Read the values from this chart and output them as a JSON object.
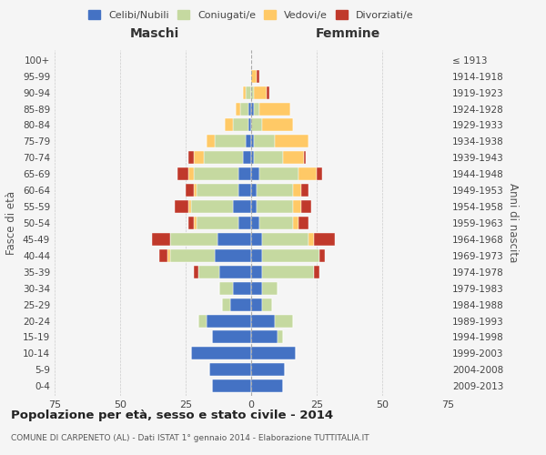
{
  "age_groups": [
    "0-4",
    "5-9",
    "10-14",
    "15-19",
    "20-24",
    "25-29",
    "30-34",
    "35-39",
    "40-44",
    "45-49",
    "50-54",
    "55-59",
    "60-64",
    "65-69",
    "70-74",
    "75-79",
    "80-84",
    "85-89",
    "90-94",
    "95-99",
    "100+"
  ],
  "birth_years": [
    "2009-2013",
    "2004-2008",
    "1999-2003",
    "1994-1998",
    "1989-1993",
    "1984-1988",
    "1979-1983",
    "1974-1978",
    "1969-1973",
    "1964-1968",
    "1959-1963",
    "1954-1958",
    "1949-1953",
    "1944-1948",
    "1939-1943",
    "1934-1938",
    "1929-1933",
    "1924-1928",
    "1919-1923",
    "1914-1918",
    "≤ 1913"
  ],
  "male": {
    "celibi": [
      15,
      16,
      23,
      15,
      17,
      8,
      7,
      12,
      14,
      13,
      5,
      7,
      5,
      5,
      3,
      2,
      1,
      1,
      0,
      0,
      0
    ],
    "coniugati": [
      0,
      0,
      0,
      0,
      3,
      3,
      5,
      8,
      17,
      18,
      16,
      16,
      16,
      17,
      15,
      12,
      6,
      3,
      2,
      0,
      0
    ],
    "vedovi": [
      0,
      0,
      0,
      0,
      0,
      0,
      0,
      0,
      1,
      0,
      1,
      1,
      1,
      2,
      4,
      3,
      3,
      2,
      1,
      0,
      0
    ],
    "divorziati": [
      0,
      0,
      0,
      0,
      0,
      0,
      0,
      2,
      3,
      7,
      2,
      5,
      3,
      4,
      2,
      0,
      0,
      0,
      0,
      0,
      0
    ]
  },
  "female": {
    "nubili": [
      12,
      13,
      17,
      10,
      9,
      4,
      4,
      4,
      4,
      4,
      3,
      2,
      2,
      3,
      1,
      1,
      0,
      1,
      0,
      0,
      0
    ],
    "coniugate": [
      0,
      0,
      0,
      2,
      7,
      4,
      6,
      20,
      22,
      18,
      13,
      14,
      14,
      15,
      11,
      8,
      4,
      2,
      1,
      0,
      0
    ],
    "vedove": [
      0,
      0,
      0,
      0,
      0,
      0,
      0,
      0,
      0,
      2,
      2,
      3,
      3,
      7,
      8,
      13,
      12,
      12,
      5,
      2,
      0
    ],
    "divorziate": [
      0,
      0,
      0,
      0,
      0,
      0,
      0,
      2,
      2,
      8,
      4,
      4,
      3,
      2,
      1,
      0,
      0,
      0,
      1,
      1,
      0
    ]
  },
  "colors": {
    "celibi_nubili": "#4472C4",
    "coniugati": "#c5d9a0",
    "vedovi": "#ffc966",
    "divorziati": "#c0392b"
  },
  "xlim": 75,
  "title": "Popolazione per età, sesso e stato civile - 2014",
  "subtitle": "COMUNE DI CARPENETO (AL) - Dati ISTAT 1° gennaio 2014 - Elaborazione TUTTITALIA.IT",
  "xlabel_left": "Maschi",
  "xlabel_right": "Femmine",
  "ylabel_left": "Fasce di età",
  "ylabel_right": "Anni di nascita",
  "bg_color": "#f5f5f5",
  "grid_color": "#cccccc"
}
